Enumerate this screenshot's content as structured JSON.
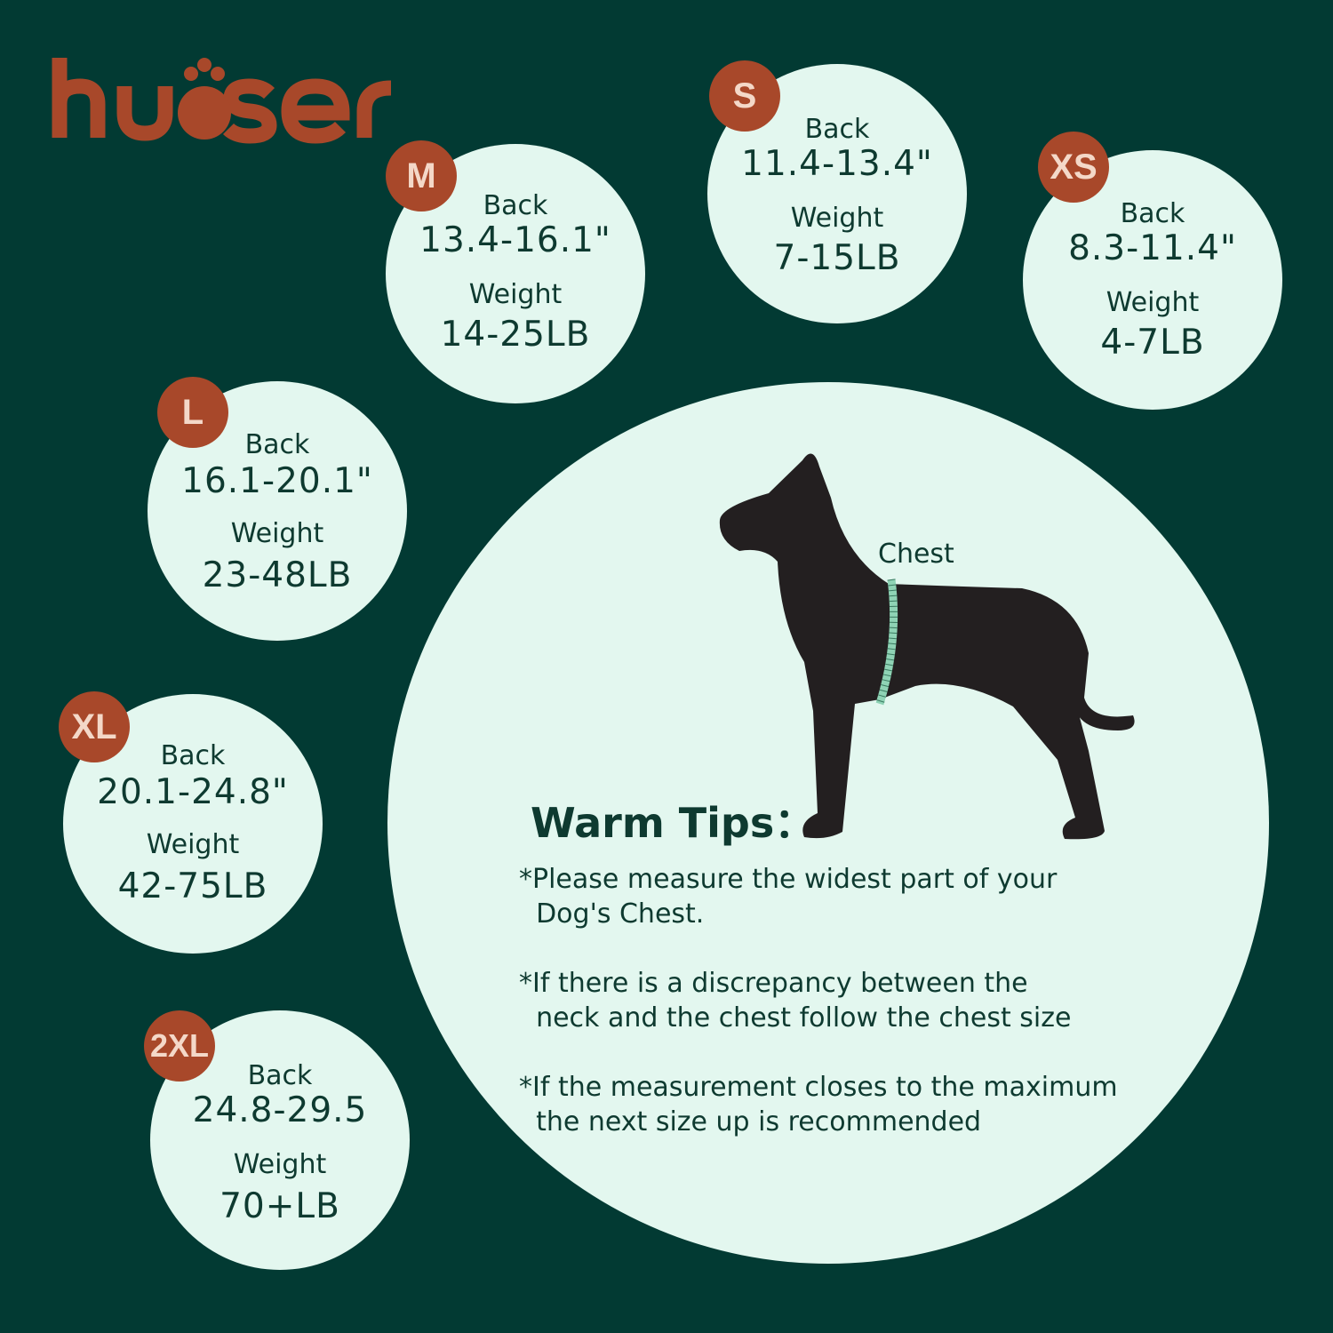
{
  "brand": {
    "logo_text": "kuoser",
    "color": "#a8482a"
  },
  "colors": {
    "background": "#023a33",
    "circle": "#e3f7ef",
    "badge": "#a8482a",
    "text": "#0e3a30",
    "tape": "#8fd3b5"
  },
  "sizes": [
    {
      "size": "M",
      "back_label": "Back",
      "back": "13.4-16.1\"",
      "weight_label": "Weight",
      "weight": "14-25LB"
    },
    {
      "size": "S",
      "back_label": "Back",
      "back": "11.4-13.4\"",
      "weight_label": "Weight",
      "weight": "7-15LB"
    },
    {
      "size": "XS",
      "back_label": "Back",
      "back": "8.3-11.4\"",
      "weight_label": "Weight",
      "weight": "4-7LB"
    },
    {
      "size": "L",
      "back_label": "Back",
      "back": "16.1-20.1\"",
      "weight_label": "Weight",
      "weight": "23-48LB"
    },
    {
      "size": "XL",
      "back_label": "Back",
      "back": "20.1-24.8\"",
      "weight_label": "Weight",
      "weight": "42-75LB"
    },
    {
      "size": "2XL",
      "back_label": "Back",
      "back": "24.8-29.5",
      "weight_label": "Weight",
      "weight": "70+LB"
    }
  ],
  "diagram": {
    "chest_label": "Chest",
    "icon": "dog-silhouette-icon"
  },
  "tips": {
    "title": "Warm Tips：",
    "items": [
      "*Please measure the widest part of your\n  Dog's Chest.",
      "*If there is a discrepancy between the\n  neck and the chest follow the chest size",
      "*If the measurement closes to the maximum\n  the next size up is recommended"
    ]
  }
}
